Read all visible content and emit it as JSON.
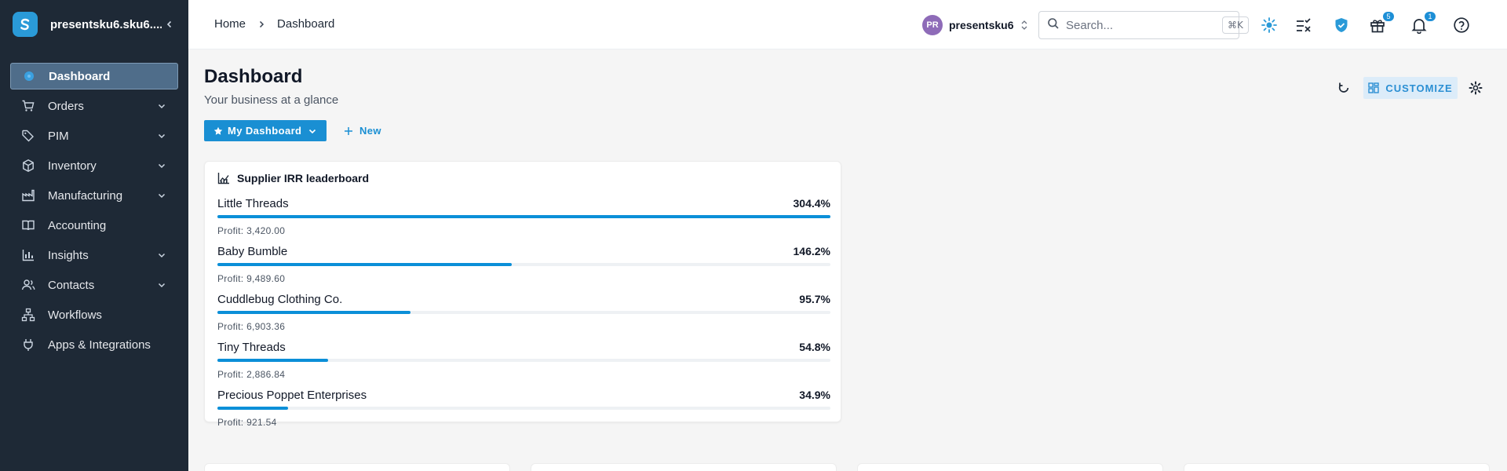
{
  "app": {
    "account_short": "presentsku6.sku6....",
    "brand_color": "#2a9ad8"
  },
  "sidebar": {
    "items": [
      {
        "label": "Dashboard",
        "icon": "dashboard-icon",
        "active": true
      },
      {
        "label": "Orders",
        "icon": "cart-icon",
        "expandable": true
      },
      {
        "label": "PIM",
        "icon": "tag-icon",
        "expandable": true
      },
      {
        "label": "Inventory",
        "icon": "box-icon",
        "expandable": true
      },
      {
        "label": "Manufacturing",
        "icon": "factory-icon",
        "expandable": true
      },
      {
        "label": "Accounting",
        "icon": "book-icon"
      },
      {
        "label": "Insights",
        "icon": "bar-chart-icon",
        "expandable": true
      },
      {
        "label": "Contacts",
        "icon": "contacts-icon",
        "expandable": true
      },
      {
        "label": "Workflows",
        "icon": "workflow-icon"
      },
      {
        "label": "Apps & Integrations",
        "icon": "plug-icon"
      }
    ]
  },
  "topbar": {
    "breadcrumbs": [
      "Home",
      "Dashboard"
    ],
    "user_initials": "PR",
    "user_name": "presentsku6",
    "search_placeholder": "Search...",
    "search_shortcut": "⌘K",
    "gift_badge": "5",
    "bell_badge": "1"
  },
  "page": {
    "title": "Dashboard",
    "subtitle": "Your business at a glance",
    "dashboard_button": "My Dashboard",
    "new_button": "New",
    "customize_button": "CUSTOMIZE"
  },
  "leaderboard": {
    "title": "Supplier IRR leaderboard",
    "accent": "#0b8fd8",
    "rows": [
      {
        "name": "Little Threads",
        "pct_label": "304.4%",
        "profit": "Profit: 3,420.00",
        "fill": 1.0
      },
      {
        "name": "Baby Bumble",
        "pct_label": "146.2%",
        "profit": "Profit: 9,489.60",
        "fill": 0.48
      },
      {
        "name": "Cuddlebug Clothing Co.",
        "pct_label": "95.7%",
        "profit": "Profit: 6,903.36",
        "fill": 0.315
      },
      {
        "name": "Tiny Threads",
        "pct_label": "54.8%",
        "profit": "Profit: 2,886.84",
        "fill": 0.18
      },
      {
        "name": "Precious Poppet Enterprises",
        "pct_label": "34.9%",
        "profit": "Profit: 921.54",
        "fill": 0.115
      }
    ]
  }
}
